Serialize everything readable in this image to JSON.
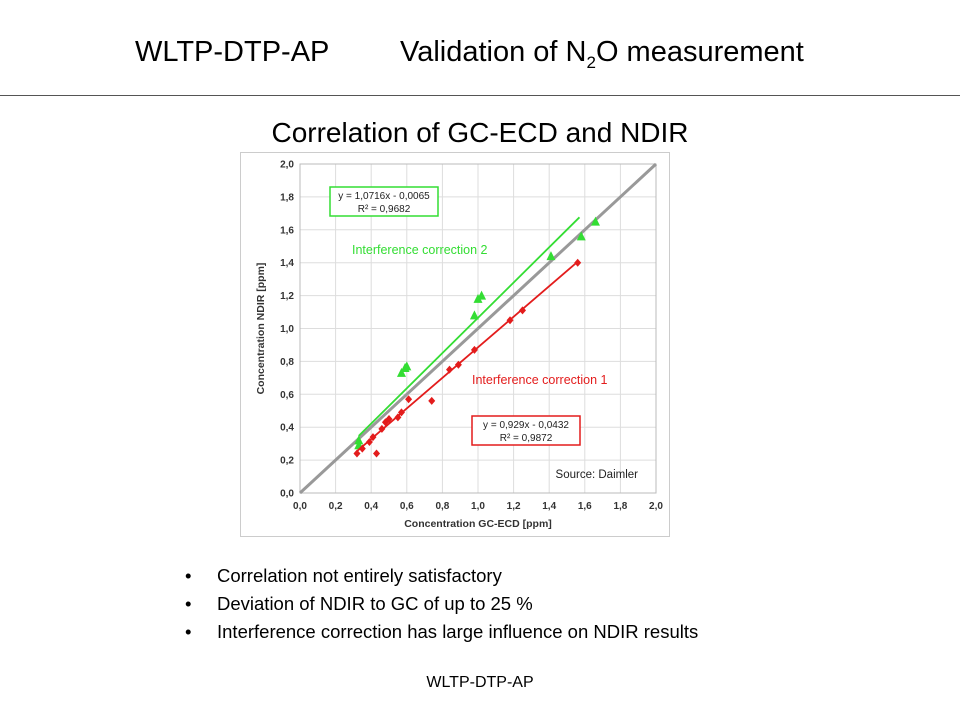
{
  "header": {
    "left": "WLTP-DTP-AP",
    "right_pre": "Validation of N",
    "right_sub": "2",
    "right_post": "O measurement"
  },
  "chart_title": "Correlation of GC-ECD and NDIR",
  "bullets": [
    "Correlation not entirely satisfactory",
    "Deviation of NDIR to GC of up to 25 %",
    "Interference correction has large influence on NDIR results"
  ],
  "footer": "WLTP-DTP-AP",
  "colors": {
    "green": "#33dd33",
    "red": "#e31c1c",
    "diag": "#999999",
    "grid": "#dddddd"
  },
  "chart_data": {
    "type": "scatter",
    "xlabel": "Concentration GC-ECD [ppm]",
    "ylabel": "Concentration NDIR [ppm]",
    "xlim": [
      0,
      2.0
    ],
    "ylim": [
      0,
      2.0
    ],
    "xticks": [
      "0,0",
      "0,2",
      "0,4",
      "0,6",
      "0,8",
      "1,0",
      "1,2",
      "1,4",
      "1,6",
      "1,8",
      "2,0"
    ],
    "yticks": [
      "0,0",
      "0,2",
      "0,4",
      "0,6",
      "0,8",
      "1,0",
      "1,2",
      "1,4",
      "1,6",
      "1,8",
      "2,0"
    ],
    "grid": true,
    "source": "Source: Daimler",
    "series": [
      {
        "name": "Interference correction 2",
        "color": "#33dd33",
        "marker": "triangle",
        "fit_label": [
          "y = 1,0716x - 0,0065",
          "R² = 0,9682"
        ],
        "fit": {
          "slope": 1.0716,
          "intercept": -0.0065,
          "x_range": [
            0.33,
            1.57
          ]
        },
        "points": [
          [
            0.33,
            0.29
          ],
          [
            0.33,
            0.32
          ],
          [
            0.57,
            0.73
          ],
          [
            0.59,
            0.76
          ],
          [
            0.6,
            0.77
          ],
          [
            0.98,
            1.08
          ],
          [
            1.0,
            1.18
          ],
          [
            1.02,
            1.2
          ],
          [
            1.41,
            1.44
          ],
          [
            1.58,
            1.56
          ],
          [
            1.66,
            1.65
          ]
        ]
      },
      {
        "name": "Interference correction 1",
        "color": "#e31c1c",
        "marker": "diamond",
        "fit_label": [
          "y = 0,929x - 0,0432",
          "R² = 0,9872"
        ],
        "fit": {
          "slope": 0.929,
          "intercept": -0.0432,
          "x_range": [
            0.32,
            1.56
          ]
        },
        "points": [
          [
            0.32,
            0.24
          ],
          [
            0.35,
            0.27
          ],
          [
            0.39,
            0.31
          ],
          [
            0.41,
            0.34
          ],
          [
            0.43,
            0.24
          ],
          [
            0.46,
            0.39
          ],
          [
            0.48,
            0.43
          ],
          [
            0.5,
            0.45
          ],
          [
            0.55,
            0.46
          ],
          [
            0.57,
            0.49
          ],
          [
            0.61,
            0.57
          ],
          [
            0.84,
            0.75
          ],
          [
            0.89,
            0.78
          ],
          [
            0.98,
            0.87
          ],
          [
            1.18,
            1.05
          ],
          [
            1.25,
            1.11
          ],
          [
            1.56,
            1.4
          ],
          [
            0.74,
            0.56
          ]
        ]
      }
    ],
    "reference_line": "y = x"
  }
}
